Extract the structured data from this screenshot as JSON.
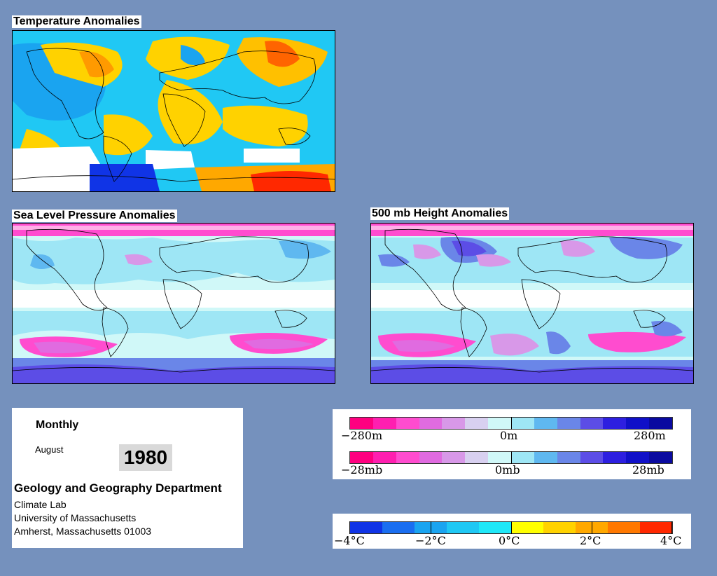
{
  "panels": {
    "temperature": {
      "title": "Temperature Anomalies"
    },
    "slp": {
      "title": "Sea Level Pressure Anomalies"
    },
    "height500": {
      "title": "500 mb Height Anomalies"
    }
  },
  "info": {
    "period": "Monthly",
    "month": "August",
    "year": "1980",
    "department": "Geology and Geography Department",
    "lab": "Climate Lab",
    "university": "University of Massachusetts",
    "address": "Amherst, Massachusetts 01003"
  },
  "legends": {
    "height": {
      "min": "−280m",
      "mid": "0m",
      "max": "280m"
    },
    "pressure": {
      "min": "−28mb",
      "mid": "0mb",
      "max": "28mb"
    },
    "temperature": {
      "t1": "−4°C",
      "t2": "−2°C",
      "t3": "0°C",
      "t4": "2°C",
      "t5": "4°C"
    }
  },
  "colors": {
    "background": "#7591bd",
    "anomaly_scale": [
      "#ff0080",
      "#ff1fb0",
      "#ff4ccf",
      "#e06be0",
      "#d898e8",
      "#d8d0f0",
      "#d0f8f8",
      "#9ee6f5",
      "#5fb8f0",
      "#6a86e8",
      "#5c4de6",
      "#2d1fe0",
      "#1010c8",
      "#0a0aa0"
    ],
    "temperature_scale": [
      "#1034e6",
      "#1a6ef0",
      "#1aa4f0",
      "#20c8f4",
      "#20e8f8",
      "#ffff00",
      "#ffd200",
      "#ffa800",
      "#ff7800",
      "#ff2800"
    ]
  }
}
